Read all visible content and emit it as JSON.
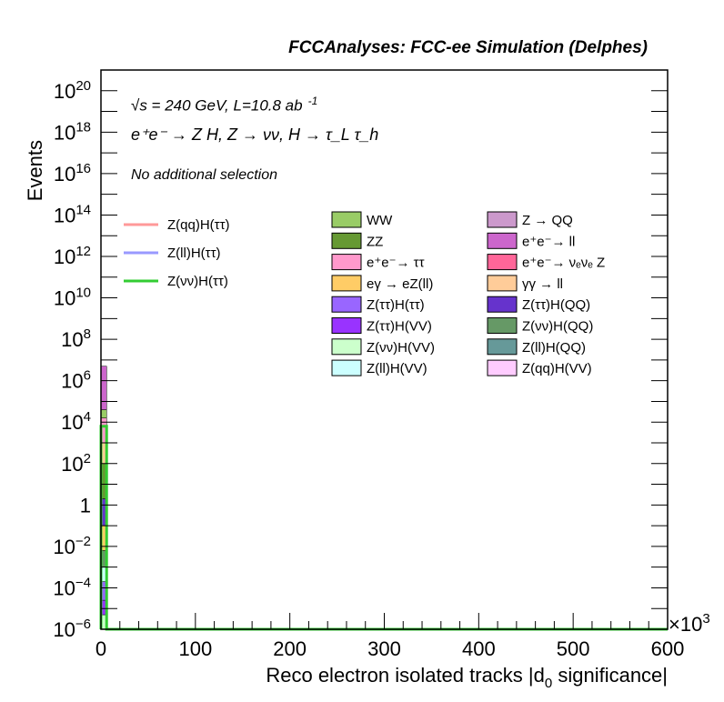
{
  "header": {
    "title": "FCCAnalyses: FCC-ee Simulation (Delphes)",
    "energy_line": "√s = 240 GeV, L=10.8 ab",
    "energy_exp": "-1",
    "process_line": "e⁺e⁻ → Z H, Z → νν, H → τ_L τ_h",
    "selection": "No additional selection"
  },
  "chart_data": {
    "type": "bar",
    "title": "FCCAnalyses: FCC-ee Simulation (Delphes)",
    "xlabel": "Reco electron isolated tracks |d0 significance|",
    "xlabel_parts": {
      "pre": "Reco electron isolated tracks |d",
      "sub": "0",
      "post": " significance|"
    },
    "ylabel": "Events",
    "x_multiplier": "×10",
    "x_multiplier_exp": "3",
    "xlim": [
      0,
      600
    ],
    "ylim_log10": [
      -6,
      21
    ],
    "log_y": true,
    "x_ticks": [
      0,
      100,
      200,
      300,
      400,
      500,
      600
    ],
    "x_tick_labels": [
      "0",
      "100",
      "200",
      "300",
      "400",
      "500",
      "600"
    ],
    "y_ticks_log10": [
      -6,
      -4,
      -2,
      0,
      2,
      4,
      6,
      8,
      10,
      12,
      14,
      16,
      18,
      20
    ],
    "y_tick_labels": [
      {
        "base": "10",
        "exp": "−6"
      },
      {
        "base": "10",
        "exp": "−4"
      },
      {
        "base": "10",
        "exp": "−2"
      },
      {
        "base": "1",
        "exp": ""
      },
      {
        "base": "10",
        "exp": "2"
      },
      {
        "base": "10",
        "exp": "4"
      },
      {
        "base": "10",
        "exp": "6"
      },
      {
        "base": "10",
        "exp": "8"
      },
      {
        "base": "10",
        "exp": "10"
      },
      {
        "base": "10",
        "exp": "12"
      },
      {
        "base": "10",
        "exp": "14"
      },
      {
        "base": "10",
        "exp": "16"
      },
      {
        "base": "10",
        "exp": "18"
      },
      {
        "base": "10",
        "exp": "20"
      }
    ],
    "stack_bins": [
      {
        "x_range": [
          0,
          6
        ],
        "layers": [
          {
            "name": "Z(νν)H(VV)",
            "top_log10": -5.3
          },
          {
            "name": "Z(ττ)H(VV)",
            "top_log10": -4.6
          },
          {
            "name": "Z(ττ)H(ττ)",
            "top_log10": -3.7
          },
          {
            "name": "Z(ll)H(VV)",
            "top_log10": -3.0
          },
          {
            "name": "Z(νν)H(QQ)",
            "top_log10": -2.2
          },
          {
            "name": "eγ → eZ(ll)",
            "top_log10": -1.0
          },
          {
            "name": "Z(ττ)H(QQ)",
            "top_log10": 0.3
          },
          {
            "name": "ZZ",
            "top_log10": 2.0
          },
          {
            "name": "γγ → ll",
            "top_log10": 3.0
          },
          {
            "name": "e⁺e⁻→ ττ",
            "top_log10": 4.2
          },
          {
            "name": "WW",
            "top_log10": 4.6
          },
          {
            "name": "e⁺e⁻→ ll",
            "top_log10": 6.7
          }
        ]
      }
    ],
    "signal_lines": [
      {
        "name": "Z(νν)H(ττ)",
        "color": "#33cc33",
        "bins": [
          {
            "x_range": [
              0,
              6
            ],
            "log10": 3.8
          }
        ]
      },
      {
        "name": "Z(ll)H(ττ)",
        "color": "#9999ff",
        "bins": []
      },
      {
        "name": "Z(qq)H(ττ)",
        "color": "#ff9999",
        "bins": []
      }
    ],
    "legend_lines": [
      {
        "label": "Z(qq)H(ττ)",
        "color": "#ff9999"
      },
      {
        "label": "Z(ll)H(ττ)",
        "color": "#9999ff"
      },
      {
        "label": "Z(νν)H(ττ)",
        "color": "#33cc33"
      }
    ],
    "legend_col1": [
      {
        "label": "WW",
        "color": "#99cc66"
      },
      {
        "label": "ZZ",
        "color": "#669933"
      },
      {
        "label": "e⁺e⁻→ ττ",
        "color": "#ff99cc"
      },
      {
        "label": "eγ → eZ(ll)",
        "color": "#ffcc66"
      },
      {
        "label": "Z(ττ)H(ττ)",
        "color": "#9966ff"
      },
      {
        "label": "Z(ττ)H(VV)",
        "color": "#9933ff"
      },
      {
        "label": "Z(νν)H(VV)",
        "color": "#ccffcc"
      },
      {
        "label": "Z(ll)H(VV)",
        "color": "#ccffff"
      }
    ],
    "legend_col2": [
      {
        "label": "Z → QQ",
        "color": "#cc99cc"
      },
      {
        "label": "e⁺e⁻→ ll",
        "color": "#cc66cc"
      },
      {
        "label": "e⁺e⁻→ νₑνₑ Z",
        "color": "#ff6699"
      },
      {
        "label": "γγ → ll",
        "color": "#ffcc99"
      },
      {
        "label": "Z(ττ)H(QQ)",
        "color": "#6633cc"
      },
      {
        "label": "Z(νν)H(QQ)",
        "color": "#669966"
      },
      {
        "label": "Z(ll)H(QQ)",
        "color": "#669999"
      },
      {
        "label": "Z(qq)H(VV)",
        "color": "#ffccff"
      }
    ],
    "grid": false,
    "legend_placement": "top-right"
  }
}
